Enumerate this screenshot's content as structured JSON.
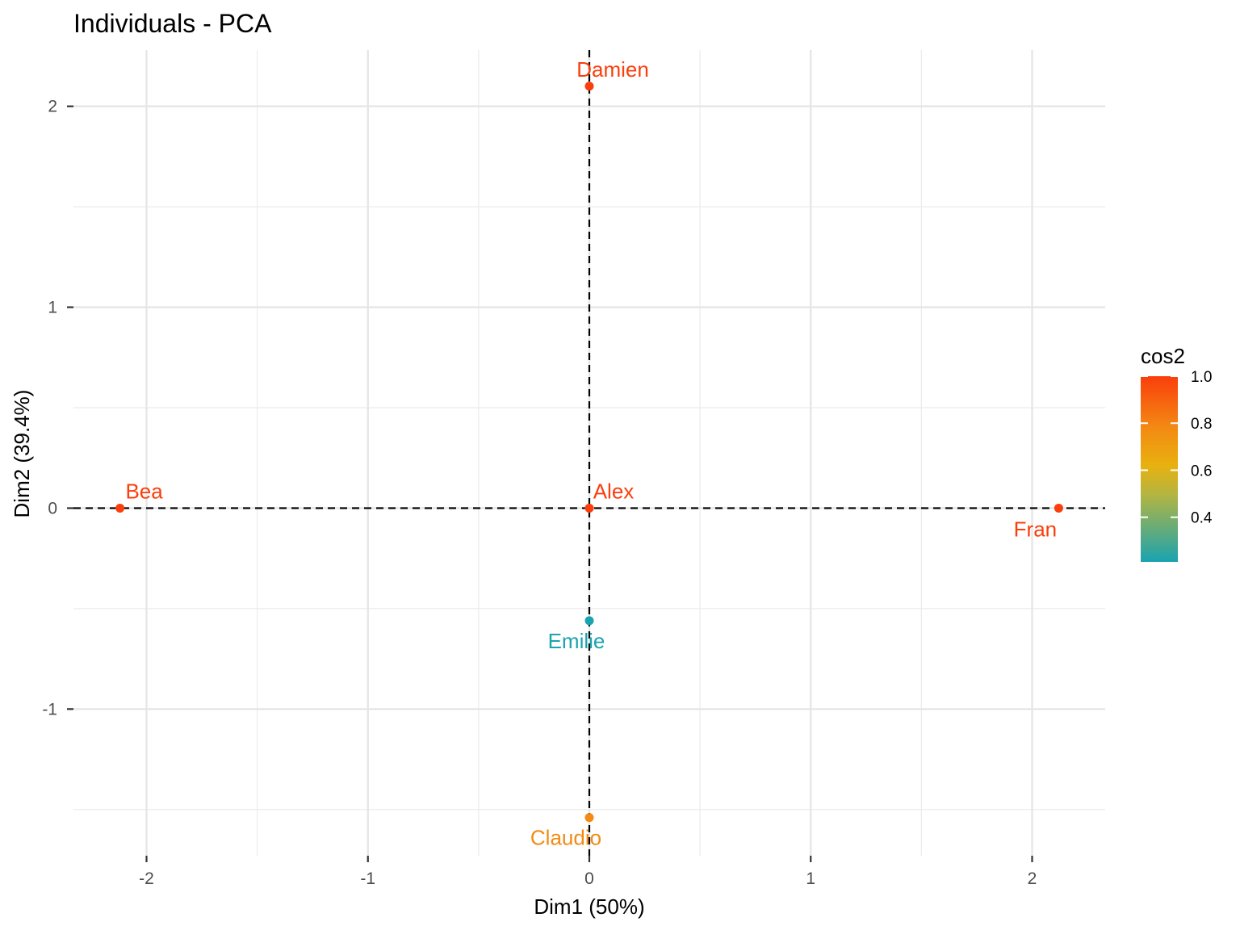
{
  "chart_data": {
    "type": "scatter",
    "title": "Individuals - PCA",
    "xlabel": "Dim1 (50%)",
    "ylabel": "Dim2 (39.4%)",
    "xlim": [
      -2.33,
      2.33
    ],
    "ylim": [
      -1.73,
      2.28
    ],
    "x_ticks": [
      -2,
      -1,
      0,
      1,
      2
    ],
    "x_tick_labels": [
      "-2",
      "-1",
      "0",
      "1",
      "2"
    ],
    "y_ticks": [
      -1,
      0,
      1,
      2
    ],
    "y_tick_labels": [
      "-1",
      "0",
      "1",
      "2"
    ],
    "grid": true,
    "reference_lines": {
      "x": 0,
      "y": 0,
      "style": "dashed"
    },
    "points": [
      {
        "label": "Alex",
        "x": 0.0,
        "y": 0.0,
        "cos2": 1.0
      },
      {
        "label": "Bea",
        "x": -2.12,
        "y": 0.0,
        "cos2": 1.0
      },
      {
        "label": "Claudio",
        "x": 0.0,
        "y": -1.54,
        "cos2": 0.78
      },
      {
        "label": "Damien",
        "x": 0.0,
        "y": 2.1,
        "cos2": 1.0
      },
      {
        "label": "Emilie",
        "x": 0.0,
        "y": -0.56,
        "cos2": 0.21
      },
      {
        "label": "Fran",
        "x": 2.12,
        "y": 0.0,
        "cos2": 1.0
      }
    ],
    "legend": {
      "title": "cos2",
      "placement": "right",
      "range": [
        0.21,
        1.0
      ],
      "ticks": [
        1.0,
        0.8,
        0.6,
        0.4
      ],
      "tick_labels": [
        "1.0",
        "0.8",
        "0.6",
        "0.4"
      ],
      "gradient_colors": [
        {
          "value": 0.21,
          "color": "#1aa3b0"
        },
        {
          "value": 0.5,
          "color": "#b5b540"
        },
        {
          "value": 0.62,
          "color": "#e8b10f"
        },
        {
          "value": 0.78,
          "color": "#f38a13"
        },
        {
          "value": 1.0,
          "color": "#fa3e0c"
        }
      ]
    }
  }
}
